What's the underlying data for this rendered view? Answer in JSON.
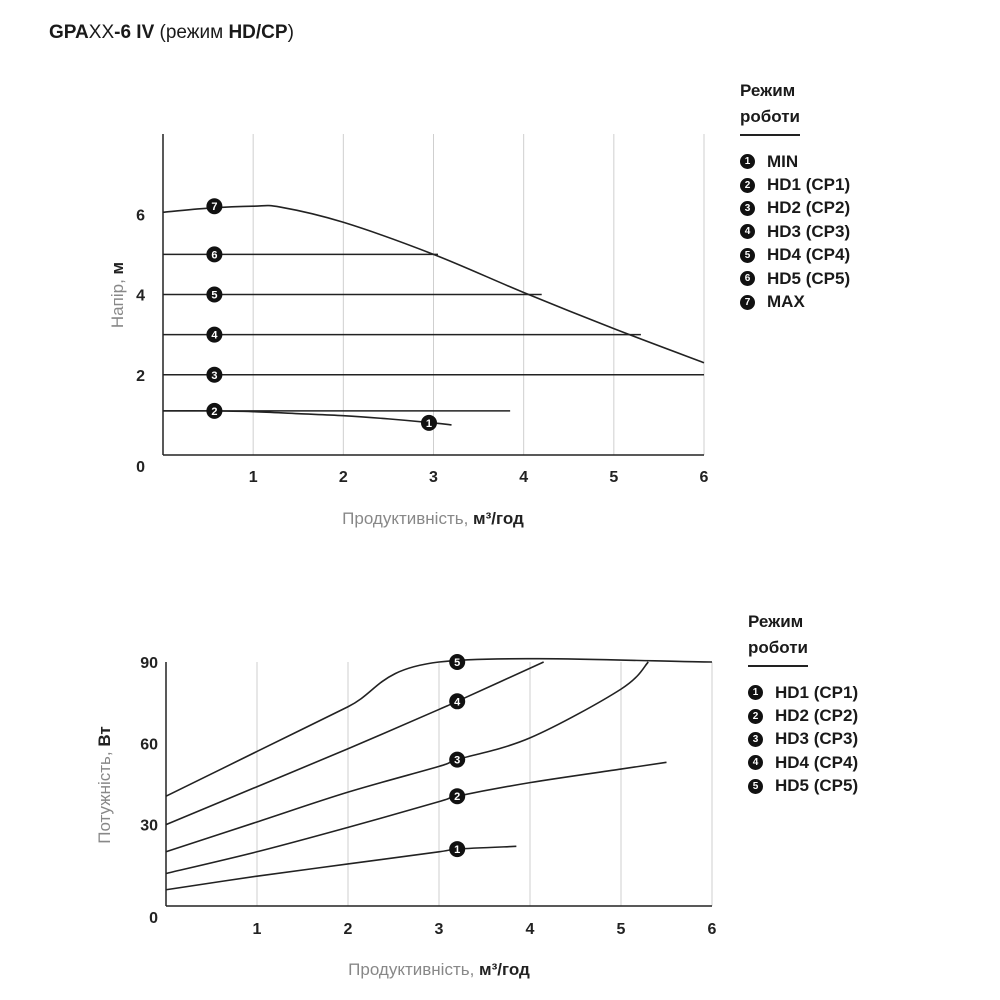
{
  "title": {
    "model": "GPA",
    "suffix_light": "XX",
    "suffix_bold": "-6 IV",
    "paren_open": " (режим ",
    "mode": "HD/CP",
    "paren_close": ")"
  },
  "chart_data": [
    {
      "type": "line",
      "ylabel": "Напір, ",
      "ylabel_unit": "м",
      "xlabel": "Продуктивність, ",
      "xlabel_unit": "м³/год",
      "x_ticks": [
        "1",
        "2",
        "3",
        "4",
        "5",
        "6"
      ],
      "y_ticks": [
        "0",
        "2",
        "4",
        "6"
      ],
      "xlim": [
        0,
        6
      ],
      "ylim": [
        0,
        8
      ],
      "grid": "vertical",
      "series": [
        {
          "marker": "1",
          "points": [
            [
              0,
              1.1
            ],
            [
              0.5,
              1.1
            ],
            [
              1,
              1.08
            ],
            [
              1.5,
              1.03
            ],
            [
              2,
              0.98
            ],
            [
              2.5,
              0.9
            ],
            [
              3,
              0.8
            ],
            [
              3.2,
              0.75
            ]
          ],
          "marker_at": [
            2.95,
            0.8
          ]
        },
        {
          "marker": "2",
          "points": [
            [
              0,
              1.1
            ],
            [
              3.85,
              1.1
            ]
          ],
          "marker_at": [
            0.57,
            1.1
          ]
        },
        {
          "marker": "3",
          "points": [
            [
              0,
              2
            ],
            [
              6,
              2
            ]
          ],
          "marker_at": [
            0.57,
            2
          ]
        },
        {
          "marker": "4",
          "points": [
            [
              0,
              3
            ],
            [
              5.3,
              3
            ]
          ],
          "marker_at": [
            0.57,
            3
          ]
        },
        {
          "marker": "5",
          "points": [
            [
              0,
              4
            ],
            [
              4.2,
              4
            ]
          ],
          "marker_at": [
            0.57,
            4
          ]
        },
        {
          "marker": "6",
          "points": [
            [
              0,
              5
            ],
            [
              3.05,
              5
            ]
          ],
          "marker_at": [
            0.57,
            5
          ]
        },
        {
          "marker": "7",
          "points": [
            [
              0,
              6.05
            ],
            [
              0.5,
              6.15
            ],
            [
              1,
              6.2
            ],
            [
              1.3,
              6.18
            ],
            [
              2,
              5.8
            ],
            [
              3,
              5.0
            ],
            [
              4,
              4.05
            ],
            [
              5,
              3.15
            ],
            [
              6,
              2.3
            ]
          ],
          "marker_at": [
            0.57,
            6.2
          ]
        }
      ],
      "legend_title": [
        "Режим",
        "роботи"
      ],
      "legend": [
        {
          "num": "1",
          "label": "MIN"
        },
        {
          "num": "2",
          "label": "HD1 (CP1)"
        },
        {
          "num": "3",
          "label": "HD2 (CP2)"
        },
        {
          "num": "4",
          "label": "HD3 (CP3)"
        },
        {
          "num": "5",
          "label": "HD4 (CP4)"
        },
        {
          "num": "6",
          "label": "HD5 (CP5)"
        },
        {
          "num": "7",
          "label": "MAX"
        }
      ]
    },
    {
      "type": "line",
      "ylabel": "Потужність, ",
      "ylabel_unit": "Вт",
      "xlabel": "Продуктивність, ",
      "xlabel_unit": "м³/год",
      "x_ticks": [
        "1",
        "2",
        "3",
        "4",
        "5",
        "6"
      ],
      "y_ticks": [
        "0",
        "30",
        "60",
        "90"
      ],
      "xlim": [
        0,
        6
      ],
      "ylim": [
        0,
        90
      ],
      "grid": "vertical",
      "series": [
        {
          "marker": "1",
          "points": [
            [
              0,
              6
            ],
            [
              1,
              11
            ],
            [
              2,
              15.5
            ],
            [
              3,
              20
            ],
            [
              3.2,
              21
            ],
            [
              3.85,
              22
            ]
          ],
          "marker_at": [
            3.2,
            21
          ]
        },
        {
          "marker": "2",
          "points": [
            [
              0,
              12
            ],
            [
              1,
              20
            ],
            [
              2,
              29
            ],
            [
              3,
              38.5
            ],
            [
              3.2,
              40.5
            ],
            [
              4,
              45.5
            ],
            [
              5,
              50.5
            ],
            [
              5.5,
              53
            ]
          ],
          "marker_at": [
            3.2,
            40.5
          ]
        },
        {
          "marker": "3",
          "points": [
            [
              0,
              20
            ],
            [
              1,
              31
            ],
            [
              2,
              42
            ],
            [
              3,
              51.5
            ],
            [
              3.2,
              54
            ],
            [
              4,
              62
            ],
            [
              5,
              80
            ],
            [
              5.3,
              90
            ]
          ],
          "marker_at": [
            3.2,
            54
          ]
        },
        {
          "marker": "4",
          "points": [
            [
              0,
              30
            ],
            [
              1,
              44
            ],
            [
              2,
              58
            ],
            [
              3,
              72.5
            ],
            [
              3.2,
              75.5
            ],
            [
              4.15,
              90
            ]
          ],
          "marker_at": [
            3.2,
            75.5
          ]
        },
        {
          "marker": "5",
          "points": [
            [
              0,
              40.5
            ],
            [
              1,
              57
            ],
            [
              2,
              73.5
            ],
            [
              3,
              90
            ],
            [
              6,
              90
            ]
          ],
          "marker_at": [
            3.2,
            90
          ]
        }
      ],
      "legend_title": [
        "Режим",
        "роботи"
      ],
      "legend": [
        {
          "num": "1",
          "label": "HD1 (CP1)"
        },
        {
          "num": "2",
          "label": "HD2 (CP2)"
        },
        {
          "num": "3",
          "label": "HD3 (CP3)"
        },
        {
          "num": "4",
          "label": "HD4 (CP4)"
        },
        {
          "num": "5",
          "label": "HD5 (CP5)"
        }
      ]
    }
  ]
}
